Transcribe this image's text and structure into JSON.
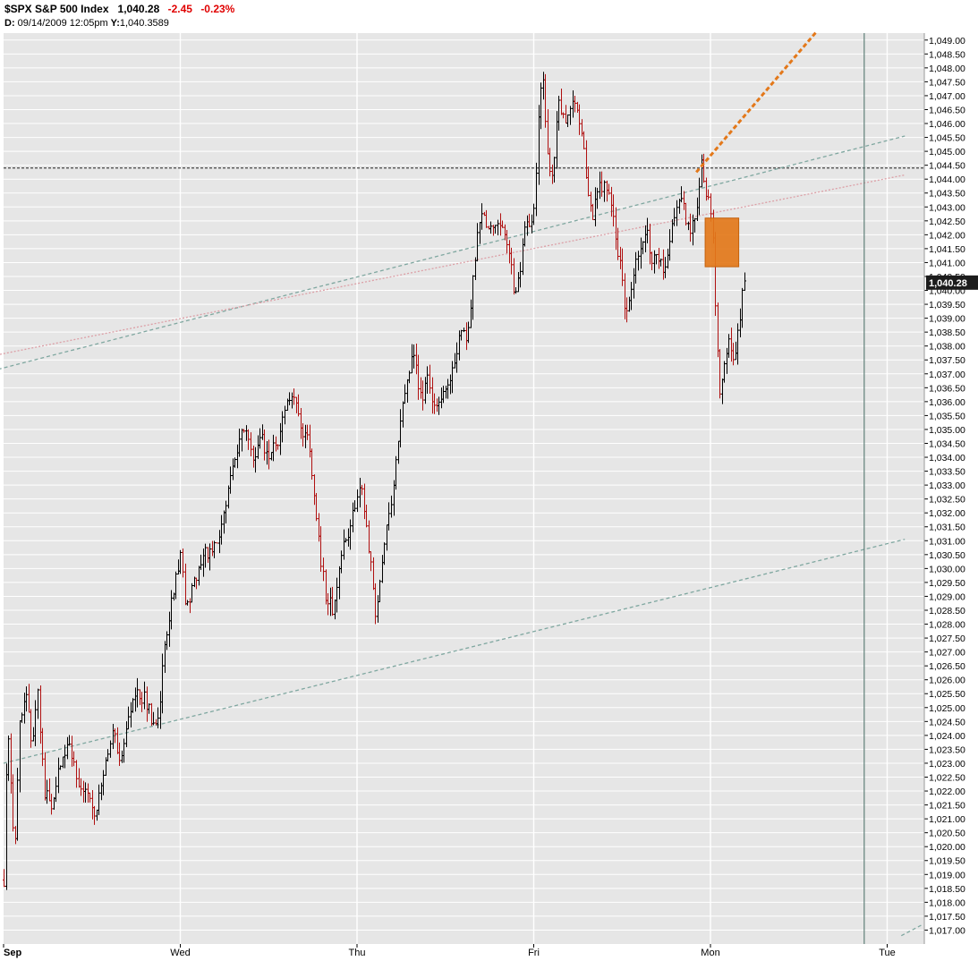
{
  "header": {
    "symbol": "$SPX",
    "name": "S&P 500 Index",
    "last": "1,040.28",
    "change": "-2.45",
    "change_pct": "-0.23%",
    "d_label": "D:",
    "date": "09/14/2009",
    "time": "12:05pm",
    "y_label": "Y:",
    "y_value": "1,040.3589"
  },
  "colors": {
    "plot_bg": "#e6e6e6",
    "grid": "#ffffff",
    "up_bar": "#000000",
    "down_bar": "#b01010",
    "orange": "#e3781a",
    "teal_trend": "#7fa7a0",
    "pink_trend": "#dc9fa6",
    "level_line": "#444444",
    "today_line": "#5f7f78",
    "last_label_bg": "#1c1c1c"
  },
  "chart_data": {
    "type": "ohlc",
    "interval": "intraday",
    "ylim": [
      1016.5,
      1049.25
    ],
    "y_ticks": [
      "1,049.00",
      "1,048.50",
      "1,048.00",
      "1,047.50",
      "1,047.00",
      "1,046.50",
      "1,046.00",
      "1,045.50",
      "1,045.00",
      "1,044.50",
      "1,044.00",
      "1,043.50",
      "1,043.00",
      "1,042.50",
      "1,042.00",
      "1,041.50",
      "1,041.00",
      "1,040.50",
      "1,040.00",
      "1,039.50",
      "1,039.00",
      "1,038.50",
      "1,038.00",
      "1,037.50",
      "1,037.00",
      "1,036.50",
      "1,036.00",
      "1,035.50",
      "1,035.00",
      "1,034.50",
      "1,034.00",
      "1,033.50",
      "1,033.00",
      "1,032.50",
      "1,032.00",
      "1,031.50",
      "1,031.00",
      "1,030.50",
      "1,030.00",
      "1,029.50",
      "1,029.00",
      "1,028.50",
      "1,028.00",
      "1,027.50",
      "1,027.00",
      "1,026.50",
      "1,026.00",
      "1,025.50",
      "1,025.00",
      "1,024.50",
      "1,024.00",
      "1,023.50",
      "1,023.00",
      "1,022.50",
      "1,022.00",
      "1,021.50",
      "1,021.00",
      "1,020.50",
      "1,020.00",
      "1,019.50",
      "1,019.00",
      "1,018.50",
      "1,018.00",
      "1,017.50",
      "1,017.00"
    ],
    "x_ticks": [
      {
        "label": "Sep",
        "day": 0,
        "bold": true
      },
      {
        "label": "Wed",
        "day": 1,
        "bold": false
      },
      {
        "label": "Thu",
        "day": 2,
        "bold": false
      },
      {
        "label": "Fri",
        "day": 3,
        "bold": false
      },
      {
        "label": "Mon",
        "day": 4,
        "bold": false
      },
      {
        "label": "Tue",
        "day": 5,
        "bold": false
      }
    ],
    "last_price": 1040.28,
    "last_price_label": "1,040.28",
    "path_points": [
      [
        0.0,
        1018.8
      ],
      [
        0.02,
        1024.5
      ],
      [
        0.06,
        1019.8
      ],
      [
        0.09,
        1024.5
      ],
      [
        0.13,
        1025.7
      ],
      [
        0.16,
        1023.2
      ],
      [
        0.19,
        1025.6
      ],
      [
        0.23,
        1022.0
      ],
      [
        0.27,
        1021.4
      ],
      [
        0.32,
        1023.1
      ],
      [
        0.37,
        1023.8
      ],
      [
        0.4,
        1023.0
      ],
      [
        0.43,
        1022.0
      ],
      [
        0.47,
        1021.9
      ],
      [
        0.52,
        1021.1
      ],
      [
        0.58,
        1023.3
      ],
      [
        0.62,
        1024.4
      ],
      [
        0.66,
        1022.8
      ],
      [
        0.7,
        1024.6
      ],
      [
        0.75,
        1025.6
      ],
      [
        0.8,
        1025.3
      ],
      [
        0.85,
        1024.3
      ],
      [
        0.88,
        1025.0
      ],
      [
        0.91,
        1027.4
      ],
      [
        0.97,
        1029.5
      ],
      [
        1.0,
        1030.4
      ],
      [
        1.03,
        1028.7
      ],
      [
        1.08,
        1029.5
      ],
      [
        1.14,
        1030.5
      ],
      [
        1.21,
        1030.9
      ],
      [
        1.27,
        1032.7
      ],
      [
        1.32,
        1034.4
      ],
      [
        1.37,
        1035.1
      ],
      [
        1.41,
        1034.0
      ],
      [
        1.46,
        1034.6
      ],
      [
        1.5,
        1034.0
      ],
      [
        1.55,
        1034.6
      ],
      [
        1.59,
        1035.6
      ],
      [
        1.64,
        1036.4
      ],
      [
        1.69,
        1035.0
      ],
      [
        1.73,
        1034.5
      ],
      [
        1.77,
        1031.5
      ],
      [
        1.82,
        1029.1
      ],
      [
        1.86,
        1028.5
      ],
      [
        1.91,
        1030.5
      ],
      [
        1.97,
        1031.8
      ],
      [
        2.02,
        1033.2
      ],
      [
        2.07,
        1030.5
      ],
      [
        2.1,
        1028.4
      ],
      [
        2.13,
        1029.5
      ],
      [
        2.16,
        1031.5
      ],
      [
        2.19,
        1032.4
      ],
      [
        2.22,
        1034.0
      ],
      [
        2.27,
        1036.5
      ],
      [
        2.32,
        1037.8
      ],
      [
        2.36,
        1036.1
      ],
      [
        2.4,
        1036.8
      ],
      [
        2.44,
        1035.6
      ],
      [
        2.49,
        1036.3
      ],
      [
        2.55,
        1037.3
      ],
      [
        2.59,
        1038.6
      ],
      [
        2.62,
        1038.1
      ],
      [
        2.66,
        1040.9
      ],
      [
        2.7,
        1042.9
      ],
      [
        2.75,
        1042.1
      ],
      [
        2.79,
        1042.4
      ],
      [
        2.83,
        1042.1
      ],
      [
        2.87,
        1040.8
      ],
      [
        2.89,
        1039.6
      ],
      [
        2.92,
        1040.6
      ],
      [
        2.95,
        1042.3
      ],
      [
        2.99,
        1042.6
      ],
      [
        3.01,
        1043.7
      ],
      [
        3.03,
        1046.8
      ],
      [
        3.05,
        1047.5
      ],
      [
        3.08,
        1044.5
      ],
      [
        3.1,
        1043.8
      ],
      [
        3.14,
        1046.7
      ],
      [
        3.18,
        1046.0
      ],
      [
        3.22,
        1046.9
      ],
      [
        3.26,
        1046.0
      ],
      [
        3.29,
        1044.5
      ],
      [
        3.33,
        1042.6
      ],
      [
        3.37,
        1043.7
      ],
      [
        3.41,
        1043.8
      ],
      [
        3.45,
        1042.4
      ],
      [
        3.49,
        1040.8
      ],
      [
        3.52,
        1039.0
      ],
      [
        3.56,
        1040.5
      ],
      [
        3.6,
        1041.4
      ],
      [
        3.64,
        1042.1
      ],
      [
        3.67,
        1041.0
      ],
      [
        3.7,
        1041.3
      ],
      [
        3.74,
        1040.6
      ],
      [
        3.78,
        1042.1
      ],
      [
        3.82,
        1043.4
      ],
      [
        3.86,
        1042.6
      ],
      [
        3.89,
        1042.1
      ],
      [
        3.92,
        1042.9
      ],
      [
        3.95,
        1044.6
      ],
      [
        3.98,
        1043.4
      ],
      [
        4.01,
        1042.4
      ],
      [
        4.03,
        1038.6
      ],
      [
        4.05,
        1036.3
      ],
      [
        4.08,
        1037.6
      ],
      [
        4.11,
        1038.4
      ],
      [
        4.13,
        1037.2
      ],
      [
        4.16,
        1038.7
      ],
      [
        4.18,
        1040.1
      ],
      [
        4.2,
        1040.3
      ]
    ],
    "overlays": [
      {
        "kind": "horizontal",
        "price": 1044.4,
        "color": "level_line",
        "dash": "3 2"
      },
      {
        "kind": "trendline",
        "color": "teal_trend",
        "dash": "4 3",
        "from": [
          -0.1,
          1037.05
        ],
        "to": [
          5.1,
          1045.55
        ]
      },
      {
        "kind": "trendline",
        "color": "pink_trend",
        "dash": "2 2",
        "from": [
          -0.1,
          1037.6
        ],
        "to": [
          5.1,
          1044.15
        ]
      },
      {
        "kind": "trendline",
        "color": "teal_trend",
        "dash": "4 3",
        "from": [
          0.0,
          1023.0
        ],
        "to": [
          5.1,
          1031.05
        ]
      },
      {
        "kind": "trendline",
        "color": "teal_trend",
        "dash": "4 3",
        "from": [
          5.08,
          1016.8
        ],
        "to": [
          5.2,
          1017.2
        ]
      },
      {
        "kind": "trendline",
        "color": "orange",
        "dash": "5 3",
        "width": 3,
        "from": [
          3.92,
          1044.25
        ],
        "to": [
          4.6,
          1049.3
        ]
      },
      {
        "kind": "rect",
        "color": "orange",
        "x1": 3.97,
        "x2": 4.16,
        "y1": 1040.85,
        "y2": 1042.6
      },
      {
        "kind": "vertical",
        "day": 4.87,
        "color": "today_line"
      }
    ]
  }
}
